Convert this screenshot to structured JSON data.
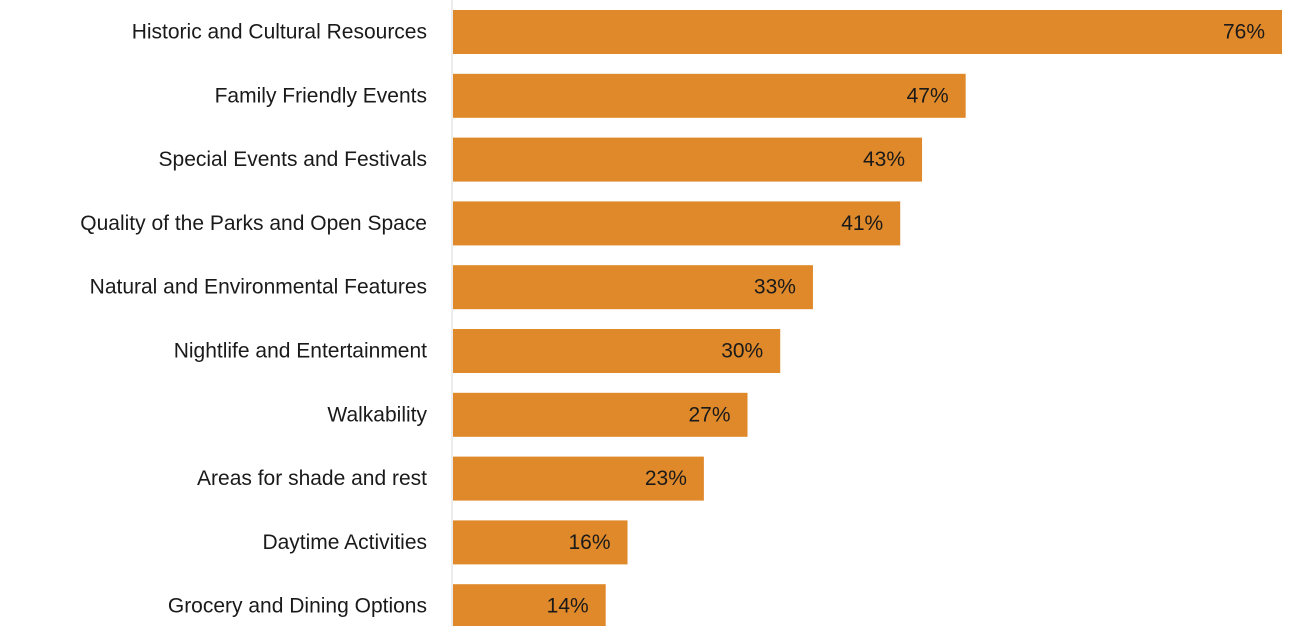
{
  "chart_data": {
    "type": "bar",
    "orientation": "horizontal",
    "categories": [
      "Historic and Cultural Resources",
      "Family Friendly Events",
      "Special Events and Festivals",
      "Quality of the Parks and Open Space",
      "Natural and Environmental Features",
      "Nightlife and Entertainment",
      "Walkability",
      "Areas for shade and rest",
      "Daytime Activities",
      "Grocery and Dining Options"
    ],
    "values": [
      76,
      47,
      43,
      41,
      33,
      30,
      27,
      23,
      16,
      14
    ],
    "value_labels": [
      "76%",
      "47%",
      "43%",
      "41%",
      "33%",
      "30%",
      "27%",
      "23%",
      "16%",
      "14%"
    ],
    "unit": "%",
    "title": "",
    "xlabel": "",
    "ylabel": "",
    "xlim": [
      0,
      76
    ],
    "grid": false,
    "legend": "none",
    "bar_color": "#E0892A"
  }
}
